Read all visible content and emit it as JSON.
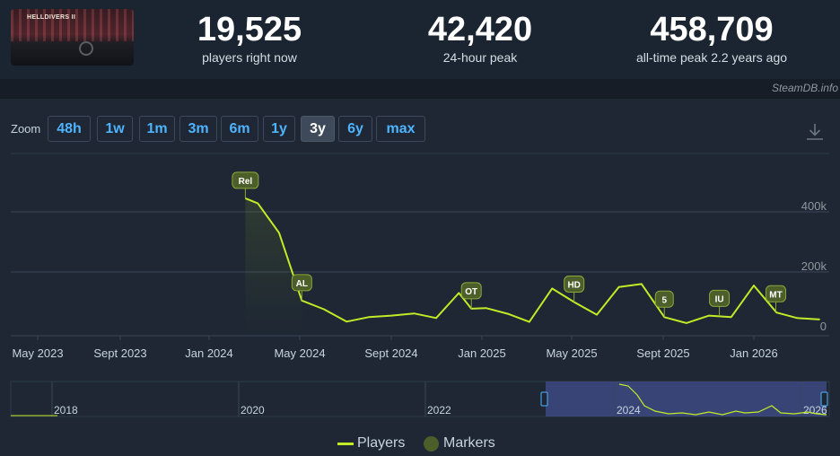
{
  "header": {
    "stats": [
      {
        "value": "19,525",
        "label": "players right now"
      },
      {
        "value": "42,420",
        "label": "24-hour peak"
      },
      {
        "value": "458,709",
        "label": "all-time peak 2.2 years ago"
      }
    ],
    "game_logo_text": "HELLDIVERS II",
    "credit": "SteamDB.info"
  },
  "zoom": {
    "label": "Zoom",
    "buttons": [
      "48h",
      "1w",
      "1m",
      "3m",
      "6m",
      "1y",
      "3y",
      "6y",
      "max"
    ],
    "active": "3y"
  },
  "legend": {
    "players": "Players",
    "markers": "Markers"
  },
  "colors": {
    "line": "#c2ea27",
    "marker_fill": "#4c5e2a",
    "marker_stroke": "#8aa83a",
    "active_zoom": "#3e4a5a",
    "zoom_text": "#4fb3ff",
    "navigator_window": "#3d4a82"
  },
  "chart_data": {
    "type": "line",
    "series": [
      {
        "name": "Players",
        "x": [
          "2024-02-08",
          "2024-02-25",
          "2024-03-25",
          "2024-04-25",
          "2024-05-25",
          "2024-06-25",
          "2024-07-25",
          "2024-08-25",
          "2024-09-25",
          "2024-10-25",
          "2024-11-25",
          "2024-12-12",
          "2025-01-01",
          "2025-02-01",
          "2025-03-01",
          "2025-04-01",
          "2025-05-01",
          "2025-06-01",
          "2025-07-01",
          "2025-08-01",
          "2025-09-01",
          "2025-10-01",
          "2025-11-01",
          "2025-12-01",
          "2026-01-01",
          "2026-02-01",
          "2026-03-01",
          "2026-04-01"
        ],
        "y": [
          445000,
          428000,
          330000,
          105000,
          76000,
          35000,
          50000,
          55000,
          62000,
          47000,
          130000,
          78000,
          80000,
          60000,
          34000,
          145000,
          100000,
          58000,
          150000,
          160000,
          50000,
          30000,
          55000,
          50000,
          155000,
          65000,
          47000,
          42000
        ]
      }
    ],
    "markers": [
      {
        "label": "Rel",
        "x": "2024-02-08"
      },
      {
        "label": "AL",
        "x": "2024-04-25"
      },
      {
        "label": "OT",
        "x": "2024-12-12"
      },
      {
        "label": "HD",
        "x": "2025-05-01"
      },
      {
        "label": "5",
        "x": "2025-09-01"
      },
      {
        "label": "IU",
        "x": "2025-11-15"
      },
      {
        "label": "MT",
        "x": "2026-01-31"
      }
    ],
    "x_ticks": [
      "May 2023",
      "Sept 2023",
      "Jan 2024",
      "May 2024",
      "Sept 2024",
      "Jan 2025",
      "May 2025",
      "Sept 2025",
      "Jan 2026"
    ],
    "y_ticks": [
      "0",
      "200k",
      "400k"
    ],
    "ylim": [
      0,
      500000
    ],
    "navigator_ticks": [
      "2018",
      "2020",
      "2022",
      "2024",
      "2026"
    ],
    "grid": true,
    "legend_position": "bottom-center"
  }
}
